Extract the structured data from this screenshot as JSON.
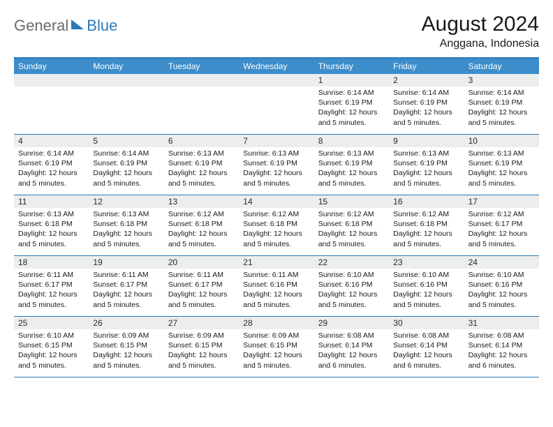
{
  "logo": {
    "left": "General",
    "right": "Blue"
  },
  "title": "August 2024",
  "location": "Anggana, Indonesia",
  "colors": {
    "header_bg": "#3c8dca",
    "border": "#2a7ab8",
    "daynum_bg": "#eceded",
    "logo_gray": "#6b6b6b",
    "logo_blue": "#2a7ab8"
  },
  "day_labels": [
    "Sunday",
    "Monday",
    "Tuesday",
    "Wednesday",
    "Thursday",
    "Friday",
    "Saturday"
  ],
  "weeks": [
    [
      {
        "n": "",
        "sr": "",
        "ss": "",
        "d": ""
      },
      {
        "n": "",
        "sr": "",
        "ss": "",
        "d": ""
      },
      {
        "n": "",
        "sr": "",
        "ss": "",
        "d": ""
      },
      {
        "n": "",
        "sr": "",
        "ss": "",
        "d": ""
      },
      {
        "n": "1",
        "sr": "6:14 AM",
        "ss": "6:19 PM",
        "d": "12 hours and 5 minutes."
      },
      {
        "n": "2",
        "sr": "6:14 AM",
        "ss": "6:19 PM",
        "d": "12 hours and 5 minutes."
      },
      {
        "n": "3",
        "sr": "6:14 AM",
        "ss": "6:19 PM",
        "d": "12 hours and 5 minutes."
      }
    ],
    [
      {
        "n": "4",
        "sr": "6:14 AM",
        "ss": "6:19 PM",
        "d": "12 hours and 5 minutes."
      },
      {
        "n": "5",
        "sr": "6:14 AM",
        "ss": "6:19 PM",
        "d": "12 hours and 5 minutes."
      },
      {
        "n": "6",
        "sr": "6:13 AM",
        "ss": "6:19 PM",
        "d": "12 hours and 5 minutes."
      },
      {
        "n": "7",
        "sr": "6:13 AM",
        "ss": "6:19 PM",
        "d": "12 hours and 5 minutes."
      },
      {
        "n": "8",
        "sr": "6:13 AM",
        "ss": "6:19 PM",
        "d": "12 hours and 5 minutes."
      },
      {
        "n": "9",
        "sr": "6:13 AM",
        "ss": "6:19 PM",
        "d": "12 hours and 5 minutes."
      },
      {
        "n": "10",
        "sr": "6:13 AM",
        "ss": "6:19 PM",
        "d": "12 hours and 5 minutes."
      }
    ],
    [
      {
        "n": "11",
        "sr": "6:13 AM",
        "ss": "6:18 PM",
        "d": "12 hours and 5 minutes."
      },
      {
        "n": "12",
        "sr": "6:13 AM",
        "ss": "6:18 PM",
        "d": "12 hours and 5 minutes."
      },
      {
        "n": "13",
        "sr": "6:12 AM",
        "ss": "6:18 PM",
        "d": "12 hours and 5 minutes."
      },
      {
        "n": "14",
        "sr": "6:12 AM",
        "ss": "6:18 PM",
        "d": "12 hours and 5 minutes."
      },
      {
        "n": "15",
        "sr": "6:12 AM",
        "ss": "6:18 PM",
        "d": "12 hours and 5 minutes."
      },
      {
        "n": "16",
        "sr": "6:12 AM",
        "ss": "6:18 PM",
        "d": "12 hours and 5 minutes."
      },
      {
        "n": "17",
        "sr": "6:12 AM",
        "ss": "6:17 PM",
        "d": "12 hours and 5 minutes."
      }
    ],
    [
      {
        "n": "18",
        "sr": "6:11 AM",
        "ss": "6:17 PM",
        "d": "12 hours and 5 minutes."
      },
      {
        "n": "19",
        "sr": "6:11 AM",
        "ss": "6:17 PM",
        "d": "12 hours and 5 minutes."
      },
      {
        "n": "20",
        "sr": "6:11 AM",
        "ss": "6:17 PM",
        "d": "12 hours and 5 minutes."
      },
      {
        "n": "21",
        "sr": "6:11 AM",
        "ss": "6:16 PM",
        "d": "12 hours and 5 minutes."
      },
      {
        "n": "22",
        "sr": "6:10 AM",
        "ss": "6:16 PM",
        "d": "12 hours and 5 minutes."
      },
      {
        "n": "23",
        "sr": "6:10 AM",
        "ss": "6:16 PM",
        "d": "12 hours and 5 minutes."
      },
      {
        "n": "24",
        "sr": "6:10 AM",
        "ss": "6:16 PM",
        "d": "12 hours and 5 minutes."
      }
    ],
    [
      {
        "n": "25",
        "sr": "6:10 AM",
        "ss": "6:15 PM",
        "d": "12 hours and 5 minutes."
      },
      {
        "n": "26",
        "sr": "6:09 AM",
        "ss": "6:15 PM",
        "d": "12 hours and 5 minutes."
      },
      {
        "n": "27",
        "sr": "6:09 AM",
        "ss": "6:15 PM",
        "d": "12 hours and 5 minutes."
      },
      {
        "n": "28",
        "sr": "6:09 AM",
        "ss": "6:15 PM",
        "d": "12 hours and 5 minutes."
      },
      {
        "n": "29",
        "sr": "6:08 AM",
        "ss": "6:14 PM",
        "d": "12 hours and 6 minutes."
      },
      {
        "n": "30",
        "sr": "6:08 AM",
        "ss": "6:14 PM",
        "d": "12 hours and 6 minutes."
      },
      {
        "n": "31",
        "sr": "6:08 AM",
        "ss": "6:14 PM",
        "d": "12 hours and 6 minutes."
      }
    ]
  ],
  "labels": {
    "sunrise": "Sunrise: ",
    "sunset": "Sunset: ",
    "daylight": "Daylight: "
  }
}
